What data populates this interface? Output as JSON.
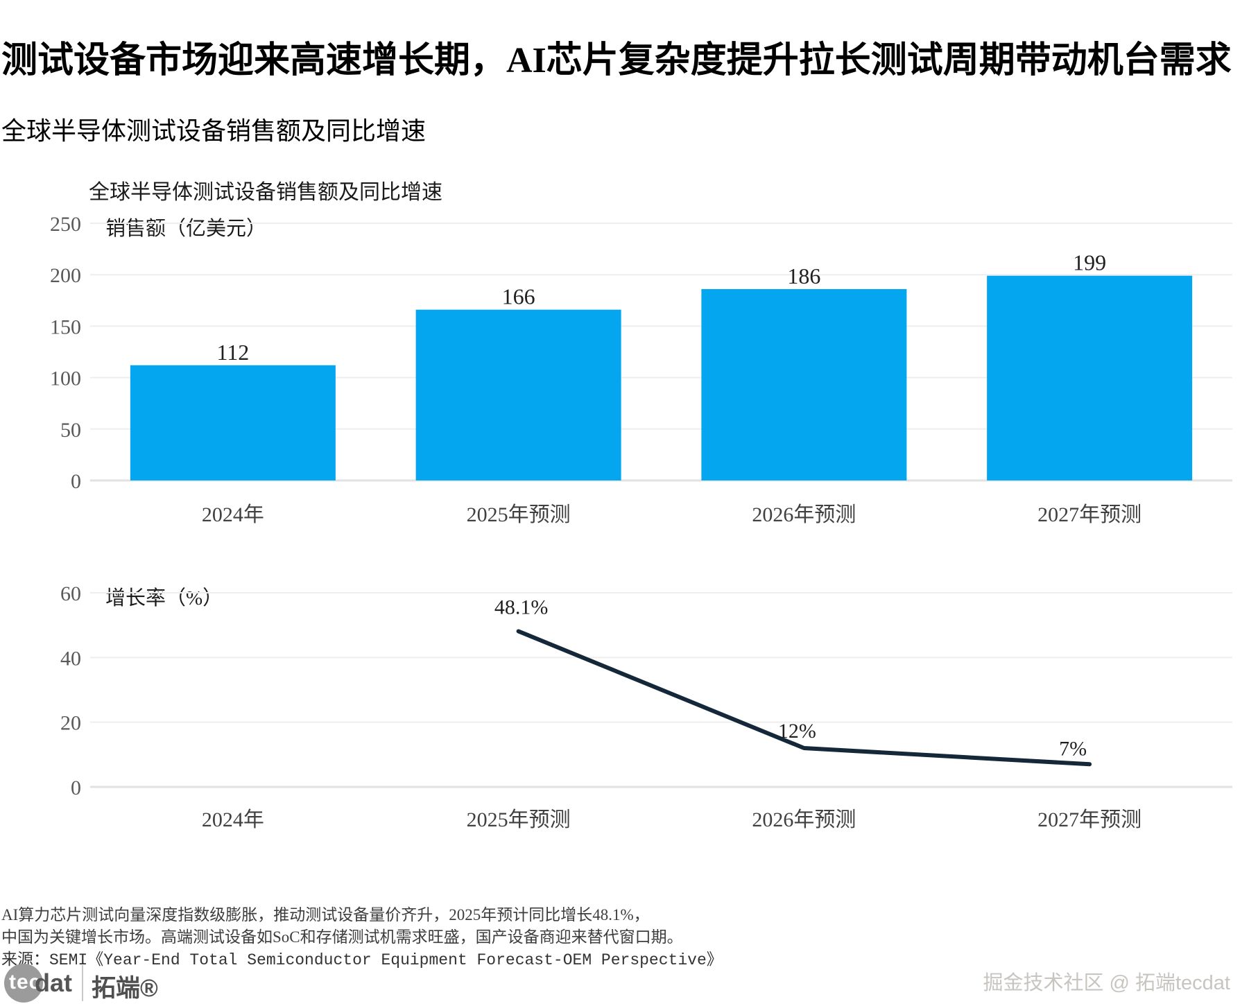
{
  "page": {
    "title": "测试设备市场迎来高速增长期，AI芯片复杂度提升拉长测试周期带动机台需求",
    "subtitle": "全球半导体测试设备销售额及同比增速"
  },
  "colors": {
    "bar": "#04a6ef",
    "line": "#152839",
    "grid": "#eeeeee",
    "axis": "#e2e2e2",
    "tick_text": "#595959",
    "x_text": "#404040",
    "value_text": "#1f1f1f"
  },
  "chart_data": [
    {
      "type": "bar",
      "title": "全球半导体测试设备销售额及同比增速",
      "ylabel": "销售额（亿美元）",
      "xlabel": "",
      "categories": [
        "2024年",
        "2025年预测",
        "2026年预测",
        "2027年预测"
      ],
      "values": [
        112,
        166,
        186,
        199
      ],
      "value_labels": [
        "112",
        "166",
        "186",
        "199"
      ],
      "ylim": [
        0,
        250
      ],
      "yticks": [
        0,
        50,
        100,
        150,
        200,
        250
      ],
      "grid": true,
      "legend": null,
      "bar_color": "#04a6ef"
    },
    {
      "type": "line",
      "title": "",
      "ylabel": "增长率（%）",
      "xlabel": "",
      "categories": [
        "2024年",
        "2025年预测",
        "2026年预测",
        "2027年预测"
      ],
      "values": [
        null,
        48.1,
        12,
        7
      ],
      "value_labels": [
        null,
        "48.1%",
        "12%",
        "7%"
      ],
      "ylim": [
        0,
        60
      ],
      "yticks": [
        0,
        20,
        40,
        60
      ],
      "grid": true,
      "legend": null,
      "line_color": "#152839"
    }
  ],
  "footer": {
    "note_line1": "AI算力芯片测试向量深度指数级膨胀，推动测试设备量价齐升，2025年预计同比增长48.1%，",
    "note_line2": "中国为关键增长市场。高端测试设备如SoC和存储测试机需求旺盛，国产设备商迎来替代窗口期。",
    "source": "来源：SEMI《Year-End Total Semiconductor Equipment Forecast-OEM Perspective》",
    "watermark": "掘金技术社区 @ 拓端tecdat",
    "logo": {
      "tec": "tec",
      "dat": "dat",
      "brand": "拓端®"
    }
  }
}
